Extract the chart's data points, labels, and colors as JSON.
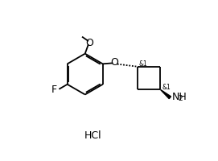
{
  "bg_color": "#ffffff",
  "line_color": "#000000",
  "line_width": 1.3,
  "font_size_label": 8.0,
  "font_size_small": 5.5,
  "font_size_hcl": 9.0,
  "fig_width": 2.71,
  "fig_height": 2.0,
  "xlim": [
    0,
    10
  ],
  "ylim": [
    0,
    10
  ]
}
